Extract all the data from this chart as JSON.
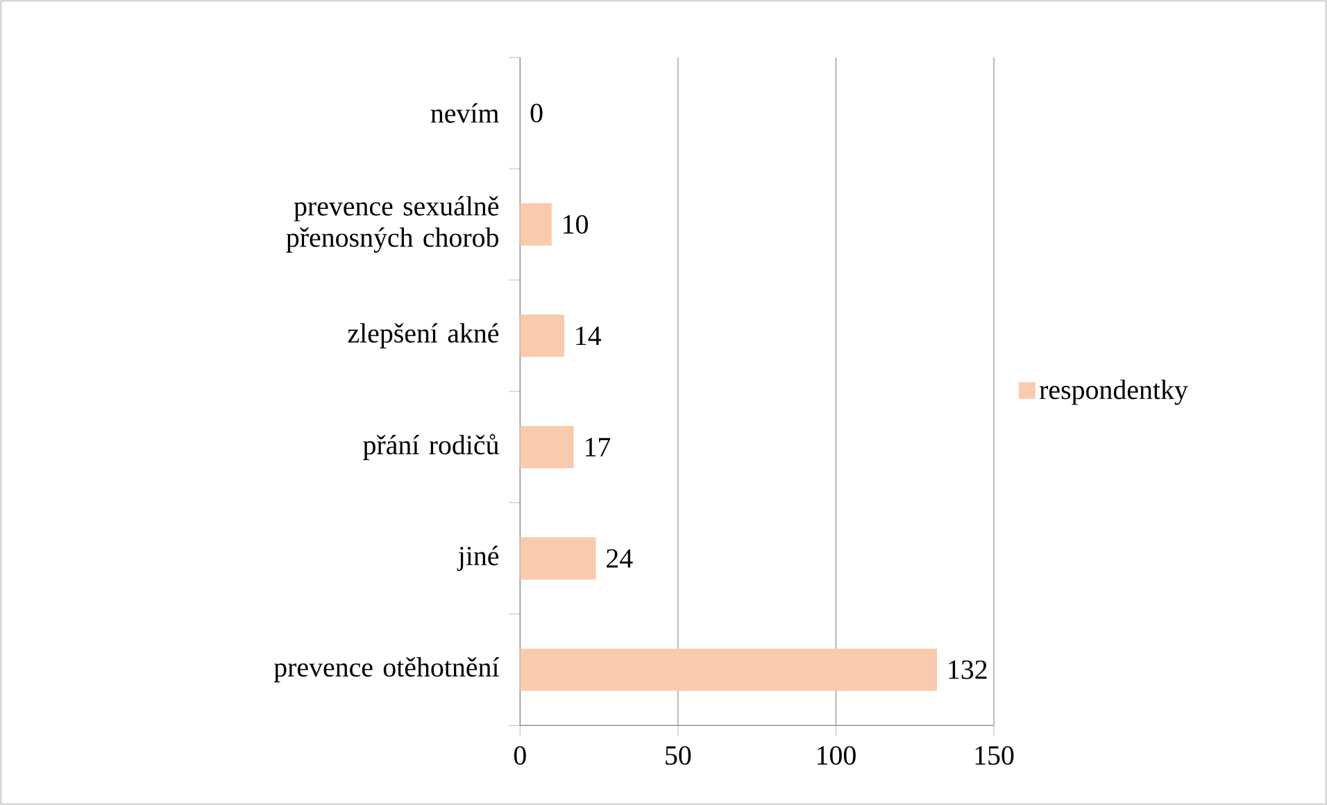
{
  "chart_data": {
    "type": "bar",
    "orientation": "horizontal",
    "categories": [
      "nevím",
      "prevence sexuálně přenosných chorob",
      "zlepšení akné",
      "přání rodičů",
      "jiné",
      "prevence otěhotnění"
    ],
    "series": [
      {
        "name": "respondentky",
        "color": "#f8cbad",
        "values": [
          0,
          10,
          14,
          17,
          24,
          132
        ]
      }
    ],
    "xlim": [
      0,
      150
    ],
    "xticks": [
      0,
      50,
      100,
      150
    ],
    "grid": "x",
    "legend": "right",
    "data_labels": true
  }
}
